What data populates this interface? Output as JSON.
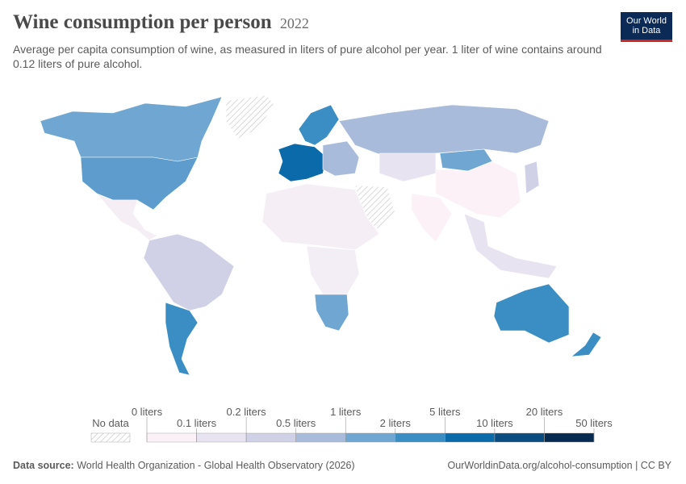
{
  "header": {
    "title": "Wine consumption per person",
    "year": "2022",
    "subtitle": "Average per capita consumption of wine, as measured in liters of pure alcohol per year. 1 liter of wine contains around 0.12 liters of pure alcohol.",
    "logo": [
      "Our World",
      "in Data"
    ]
  },
  "legend": {
    "no_data": "No data",
    "thresholds": [
      "0 liters",
      "0.1 liters",
      "0.2 liters",
      "0.5 liters",
      "1 liters",
      "2 liters",
      "5 liters",
      "10 liters",
      "20 liters",
      "50 liters"
    ],
    "colors": [
      "#fbf1f6",
      "#e7e3f0",
      "#d0d1e7",
      "#a9bbdb",
      "#6fa6d2",
      "#3a8ec4",
      "#0b6aa9",
      "#0a4b80",
      "#072b50"
    ]
  },
  "footer": {
    "source_label": "Data source:",
    "source": "World Health Organization - Global Health Observatory (2026)",
    "url": "OurWorldinData.org/alcohol-consumption | CC BY"
  }
}
